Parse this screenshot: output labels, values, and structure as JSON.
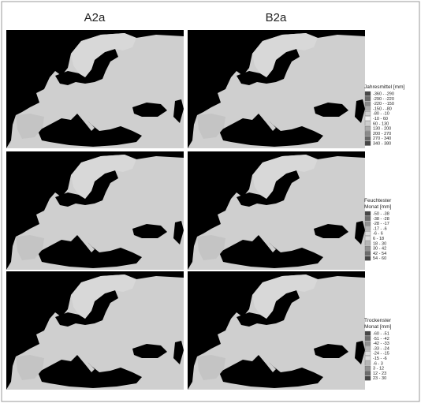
{
  "columns": [
    "A2a",
    "B2a"
  ],
  "legends": [
    {
      "title": [
        "Jahresmittel [mm]"
      ],
      "items": [
        "-360 - -290",
        "-290 - -220",
        "-220 - -150",
        "-150 - -80",
        "-80 - -10",
        "-10 - 60",
        "60 - 130",
        "130 - 200",
        "200 - 270",
        "270 - 340",
        "340 - 380"
      ]
    },
    {
      "title": [
        "Feuchtester",
        "Monat [mm]"
      ],
      "items": [
        "-50 - -38",
        "-38 - -28",
        "-28 - -17",
        "-17 - -6",
        "-6 - 6",
        "6 - 18",
        "18 - 30",
        "30 - 42",
        "42 - 54",
        "54 - 60"
      ]
    },
    {
      "title": [
        "Trockenster",
        "Monat [mm]"
      ],
      "items": [
        "-60 - -51",
        "-51 - -42",
        "-42 - -33",
        "-33 - -24",
        "-24 - -15",
        "-15 - -6",
        "-6 - 3",
        "3 - 12",
        "12 - 23",
        "23 - 30"
      ]
    }
  ]
}
